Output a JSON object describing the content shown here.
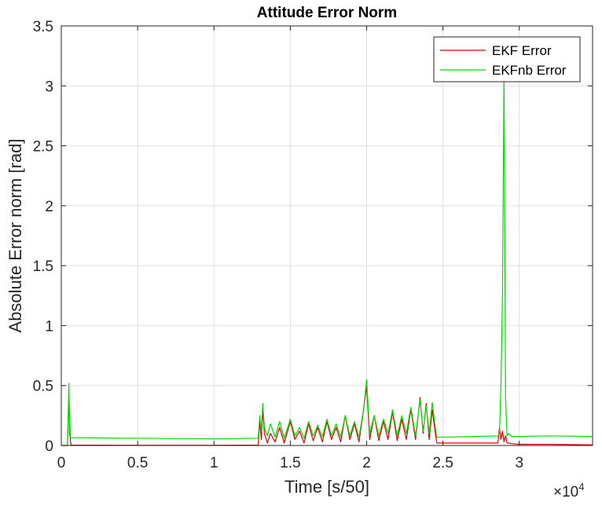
{
  "chart_data": {
    "type": "line",
    "title": "Attitude Error Norm",
    "xlabel": "Time [s/50]",
    "ylabel": "Absolute Error norm [rad]",
    "x_exponent_label": "×10",
    "x_exponent_power": "4",
    "xlim": [
      0,
      34800
    ],
    "ylim": [
      0,
      3.5
    ],
    "x_ticks": [
      0,
      5000,
      10000,
      15000,
      20000,
      25000,
      30000
    ],
    "x_tick_labels": [
      "0",
      "0.5",
      "1",
      "1.5",
      "2",
      "2.5",
      "3"
    ],
    "y_ticks": [
      0,
      0.5,
      1,
      1.5,
      2,
      2.5,
      3,
      3.5
    ],
    "y_tick_labels": [
      "0",
      "0.5",
      "1",
      "1.5",
      "2",
      "2.5",
      "3",
      "3.5"
    ],
    "grid": true,
    "legend_position": "top-right",
    "series": [
      {
        "name": "EKF Error",
        "color": "#dd0000",
        "x": [
          0,
          400,
          500,
          550,
          600,
          650,
          5000,
          10000,
          12900,
          13000,
          13100,
          13200,
          13300,
          13500,
          13700,
          14000,
          14300,
          14600,
          15000,
          15300,
          15600,
          15900,
          16200,
          16500,
          16800,
          17100,
          17400,
          17700,
          18000,
          18300,
          18600,
          18900,
          19200,
          19500,
          19800,
          20000,
          20200,
          20500,
          20800,
          21100,
          21400,
          21700,
          22000,
          22300,
          22600,
          22900,
          23200,
          23500,
          23700,
          23900,
          24100,
          24300,
          24500,
          24600,
          25000,
          27000,
          28600,
          28700,
          28800,
          28900,
          29000,
          29100,
          29200,
          29300,
          29500,
          30000,
          32000,
          34800
        ],
        "y": [
          0.0,
          0.0,
          0.4,
          0.2,
          0.03,
          0.003,
          0.002,
          0.002,
          0.003,
          0.2,
          0.05,
          0.3,
          0.1,
          0.02,
          0.1,
          0.03,
          0.15,
          0.02,
          0.2,
          0.05,
          0.12,
          0.02,
          0.18,
          0.04,
          0.15,
          0.03,
          0.2,
          0.05,
          0.15,
          0.03,
          0.25,
          0.05,
          0.18,
          0.03,
          0.3,
          0.5,
          0.05,
          0.25,
          0.04,
          0.2,
          0.05,
          0.28,
          0.04,
          0.22,
          0.05,
          0.3,
          0.05,
          0.4,
          0.1,
          0.35,
          0.05,
          0.3,
          0.1,
          0.02,
          0.02,
          0.02,
          0.02,
          0.15,
          0.05,
          0.12,
          0.03,
          0.08,
          0.02,
          0.02,
          0.015,
          0.01,
          0.01,
          0.005
        ]
      },
      {
        "name": "EKFnb Error",
        "color": "#00dd00",
        "x": [
          0,
          400,
          500,
          550,
          600,
          650,
          5000,
          10000,
          12900,
          13000,
          13100,
          13200,
          13300,
          13500,
          13700,
          14000,
          14300,
          14600,
          15000,
          15300,
          15600,
          15900,
          16200,
          16500,
          16800,
          17100,
          17400,
          17700,
          18000,
          18300,
          18600,
          18900,
          19200,
          19500,
          19800,
          20000,
          20200,
          20500,
          20800,
          21100,
          21400,
          21700,
          22000,
          22300,
          22600,
          22900,
          23200,
          23500,
          23700,
          23900,
          24100,
          24300,
          24500,
          24600,
          25000,
          27000,
          28600,
          28700,
          28800,
          28900,
          29000,
          29100,
          29200,
          29300,
          29500,
          30000,
          32000,
          34800
        ],
        "y": [
          0.0,
          0.0,
          0.52,
          0.08,
          0.07,
          0.065,
          0.06,
          0.055,
          0.06,
          0.25,
          0.12,
          0.35,
          0.15,
          0.08,
          0.18,
          0.07,
          0.2,
          0.06,
          0.22,
          0.08,
          0.15,
          0.06,
          0.2,
          0.08,
          0.17,
          0.07,
          0.22,
          0.08,
          0.18,
          0.07,
          0.25,
          0.08,
          0.2,
          0.07,
          0.3,
          0.55,
          0.1,
          0.25,
          0.08,
          0.22,
          0.1,
          0.3,
          0.08,
          0.25,
          0.1,
          0.32,
          0.08,
          0.38,
          0.12,
          0.33,
          0.1,
          0.36,
          0.15,
          0.07,
          0.07,
          0.075,
          0.08,
          0.1,
          0.5,
          1.25,
          3.1,
          0.4,
          0.08,
          0.1,
          0.075,
          0.075,
          0.08,
          0.075
        ]
      }
    ]
  }
}
